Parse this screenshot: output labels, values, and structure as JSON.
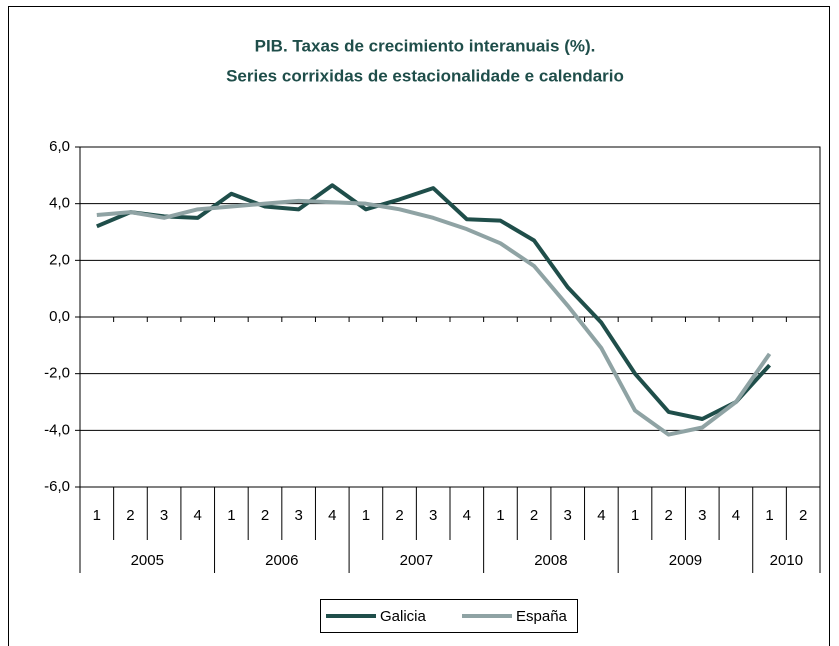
{
  "chart_data": {
    "type": "line",
    "title": "PIB. Taxas de crecimiento interanuais (%).",
    "subtitle": "Series corrixidas de estacionalidade e calendario",
    "categories": [
      "1",
      "2",
      "3",
      "4",
      "1",
      "2",
      "3",
      "4",
      "1",
      "2",
      "3",
      "4",
      "1",
      "2",
      "3",
      "4",
      "1",
      "2",
      "3",
      "4",
      "1",
      "2"
    ],
    "category_groups": [
      "2005",
      "2006",
      "2007",
      "2008",
      "2009",
      "2010"
    ],
    "series": [
      {
        "name": "Galicia",
        "color": "#1f4e4a",
        "values": [
          3.2,
          3.7,
          3.55,
          3.5,
          4.35,
          3.9,
          3.8,
          4.65,
          3.8,
          4.15,
          4.55,
          3.45,
          3.4,
          2.7,
          1.05,
          -0.2,
          -2.0,
          -3.35,
          -3.6,
          -3.0,
          -1.7,
          null
        ]
      },
      {
        "name": "España",
        "color": "#8fa3a4",
        "values": [
          3.6,
          3.7,
          3.5,
          3.8,
          3.9,
          4.0,
          4.1,
          4.05,
          4.0,
          3.8,
          3.5,
          3.1,
          2.6,
          1.8,
          0.4,
          -1.1,
          -3.3,
          -4.15,
          -3.9,
          -3.0,
          -1.3,
          null
        ]
      }
    ],
    "ylim": [
      -6,
      6
    ],
    "yticks": [
      {
        "value": -6,
        "label": "-6,0"
      },
      {
        "value": -4,
        "label": "-4,0"
      },
      {
        "value": -2,
        "label": "-2,0"
      },
      {
        "value": 0,
        "label": "0,0"
      },
      {
        "value": 2,
        "label": "2,0"
      },
      {
        "value": 4,
        "label": "4,0"
      },
      {
        "value": 6,
        "label": "6,0"
      }
    ],
    "grid": true,
    "legend": "bottom"
  }
}
